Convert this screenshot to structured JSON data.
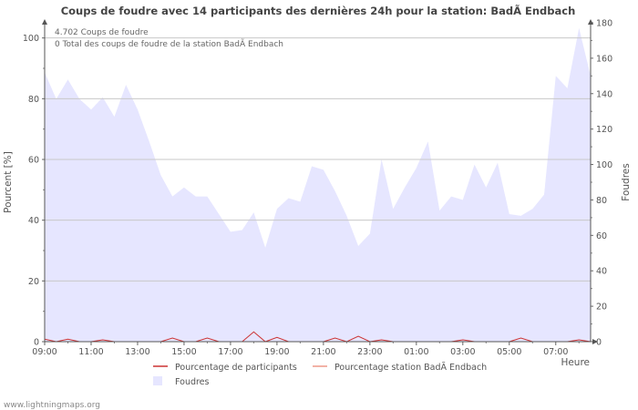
{
  "chart_data": {
    "type": "area",
    "title": "Coups de foudre avec 14 participants des dernières 24h pour la station: BadÃ  Endbach",
    "info_line1": "4.702  Coups de foudre",
    "info_line2": "0 Total des coups de foudre de la station BadÃ  Endbach",
    "ylabel_left": "Pourcent   [%]",
    "ylabel_right": "Foudres",
    "xlabel": "Heure",
    "footer": "www.lightningmaps.org",
    "ylim_left": [
      0,
      105
    ],
    "ylim_right": [
      0,
      180
    ],
    "left_ticks": [
      "0",
      "20",
      "40",
      "60",
      "80",
      "100"
    ],
    "right_ticks": [
      "0",
      "20",
      "40",
      "60",
      "80",
      "100",
      "120",
      "140",
      "160",
      "180"
    ],
    "x_tick_labels": [
      "09:00",
      "11:00",
      "13:00",
      "15:00",
      "17:00",
      "19:00",
      "21:00",
      "23:00",
      "01:00",
      "03:00",
      "05:00",
      "07:00"
    ],
    "x_range_hours": [
      0,
      23.5
    ],
    "legend": [
      {
        "label": "Pourcentage de participants",
        "color": "#cc3333"
      },
      {
        "label": "Pourcentage station BadÃ  Endbach",
        "color": "#ee9988"
      },
      {
        "label": "Foudres",
        "color": "#e6e6ff"
      }
    ],
    "series": [
      {
        "name": "Foudres",
        "axis": "right",
        "x": [
          0,
          0.5,
          1,
          1.5,
          2,
          2.5,
          3,
          3.5,
          4,
          4.5,
          5,
          5.5,
          6,
          6.5,
          7,
          7.5,
          8,
          8.5,
          9,
          9.5,
          10,
          10.5,
          11,
          11.5,
          12,
          12.5,
          13,
          13.5,
          14,
          14.5,
          15,
          15.5,
          16,
          16.5,
          17,
          17.5,
          18,
          18.5,
          19,
          19.5,
          20,
          20.5,
          21,
          21.5,
          22,
          22.5,
          23,
          23.5
        ],
        "values": [
          152,
          137,
          148,
          137,
          131,
          138,
          127,
          145,
          131,
          113,
          94,
          82,
          87,
          82,
          82,
          72,
          62,
          63,
          73,
          53,
          75,
          81,
          79,
          99,
          97,
          85,
          71,
          54,
          61,
          103,
          75,
          87,
          98,
          113,
          74,
          82,
          80,
          100,
          87,
          101,
          72,
          71,
          75,
          83,
          150,
          143,
          177,
          150
        ]
      },
      {
        "name": "Pourcentage de participants",
        "axis": "left",
        "x": [
          0,
          0.5,
          1,
          1.5,
          2,
          2.5,
          3,
          3.5,
          4,
          4.5,
          5,
          5.5,
          6,
          6.5,
          7,
          7.5,
          8,
          8.5,
          9,
          9.5,
          10,
          10.5,
          11,
          11.5,
          12,
          12.5,
          13,
          13.5,
          14,
          14.5,
          15,
          15.5,
          16,
          16.5,
          17,
          17.5,
          18,
          18.5,
          19,
          19.5,
          20,
          20.5,
          21,
          21.5,
          22,
          22.5,
          23,
          23.5
        ],
        "values": [
          0.8,
          0,
          0.8,
          0,
          0,
          0.6,
          0,
          0,
          0,
          0,
          0,
          1.2,
          0,
          0,
          1.2,
          0,
          0,
          0,
          3.2,
          0,
          1.4,
          0,
          0,
          0,
          0,
          1.2,
          0,
          1.8,
          0,
          0.6,
          0,
          0,
          0,
          0,
          0,
          0,
          0.6,
          0,
          0,
          0,
          0,
          1.2,
          0,
          0,
          0,
          0,
          0.6,
          0
        ]
      },
      {
        "name": "Pourcentage station BadÃ  Endbach",
        "axis": "left",
        "x": [
          0,
          23.5
        ],
        "values": [
          0,
          0
        ]
      }
    ]
  }
}
